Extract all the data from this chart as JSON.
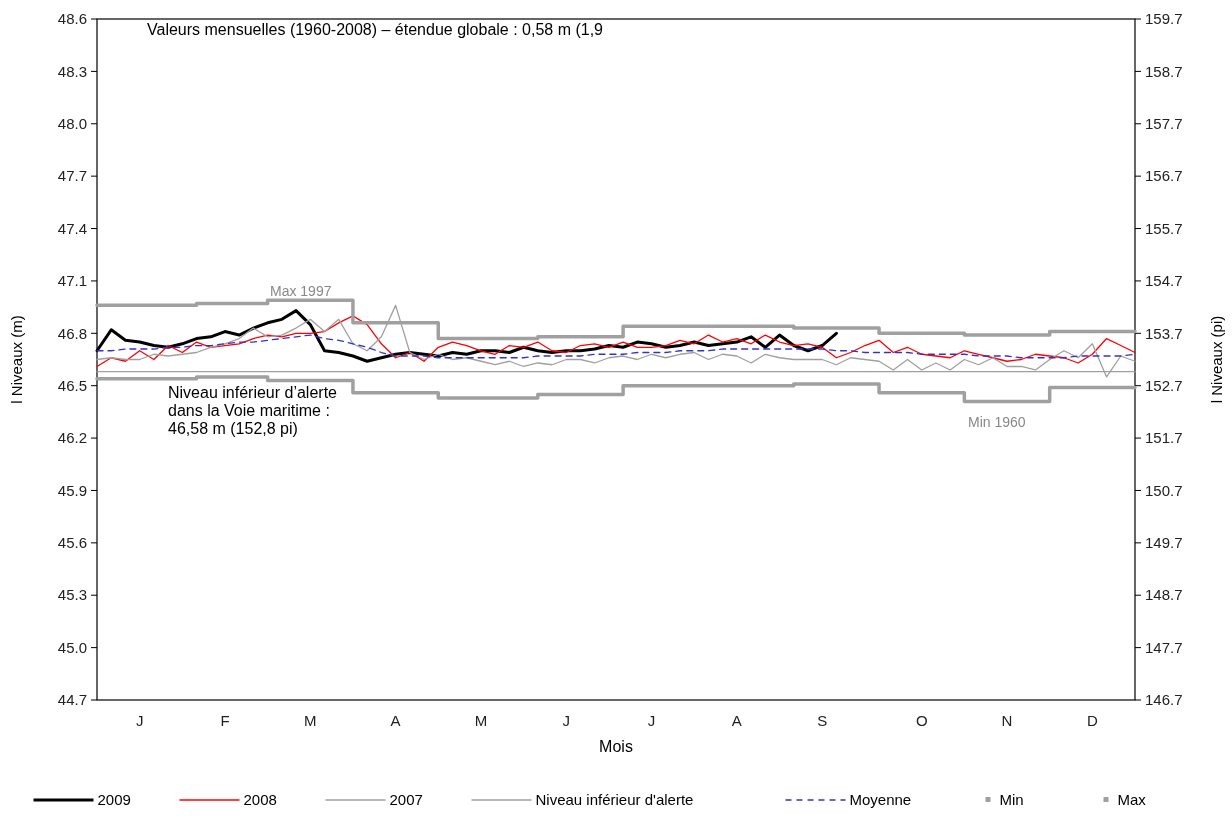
{
  "chart_data": {
    "type": "line",
    "title": "Valeurs mensuelles (1960-2008) – étendue globale : 0,58 m (1,9",
    "xlabel": "Mois",
    "ylabel": "l Niveaux (m)",
    "y2label": "l Niveaux (pi)",
    "categories": [
      null,
      null,
      null,
      "J",
      null,
      null,
      null,
      null,
      null,
      "F",
      null,
      null,
      null,
      null,
      null,
      "M",
      null,
      null,
      null,
      null,
      null,
      "A",
      null,
      null,
      null,
      null,
      null,
      "M",
      null,
      null,
      null,
      null,
      null,
      "J",
      null,
      null,
      null,
      null,
      null,
      "J",
      null,
      null,
      null,
      null,
      null,
      "A",
      null,
      null,
      null,
      null,
      null,
      "S",
      null,
      null,
      null,
      null,
      null,
      null,
      "O",
      null,
      null,
      null,
      null,
      null,
      "N",
      null,
      null,
      null,
      null,
      null,
      "D",
      null,
      null,
      null
    ],
    "ylim": [
      44.7,
      48.6
    ],
    "yticks": [
      44.7,
      {
        "value": 45,
        "label": "45.0"
      },
      45.3,
      45.6,
      45.9,
      46.2,
      46.5,
      46.8,
      47.1,
      47.4,
      47.7,
      {
        "value": 48,
        "label": "48.0"
      },
      48.3,
      48.6
    ],
    "y2lim": [
      146.7,
      159.7
    ],
    "y2ticks": [
      146.7,
      147.7,
      148.7,
      149.7,
      150.7,
      151.7,
      152.7,
      153.7,
      154.7,
      155.7,
      156.7,
      157.7,
      158.7,
      159.7
    ],
    "grid": false,
    "legend": "bottom",
    "series": [
      {
        "name": "2009",
        "color": "#000000",
        "values": [
          46.7,
          46.82,
          46.76,
          46.75,
          46.73,
          46.72,
          46.74,
          46.77,
          46.78,
          46.81,
          46.79,
          46.83,
          46.86,
          46.88,
          46.93,
          46.85,
          46.7,
          46.69,
          46.67,
          46.64,
          46.66,
          46.68,
          46.69,
          46.68,
          46.67,
          46.69,
          46.68,
          46.7,
          46.7,
          46.69,
          46.72,
          46.7,
          46.69,
          46.7,
          46.7,
          46.71,
          46.73,
          46.72,
          46.75,
          46.74,
          46.72,
          46.73,
          46.75,
          46.73,
          46.74,
          46.75,
          46.78,
          46.72,
          46.79,
          46.73,
          46.7,
          46.73,
          46.8,
          null,
          null,
          null,
          null,
          null,
          null,
          null,
          null,
          null,
          null,
          null,
          null,
          null,
          null,
          null,
          null,
          null,
          null,
          null,
          null,
          null
        ]
      },
      {
        "name": "2008",
        "color": "#ff0000",
        "values": [
          46.61,
          46.66,
          46.64,
          46.7,
          46.65,
          46.73,
          46.69,
          46.75,
          46.72,
          46.73,
          46.74,
          46.77,
          46.79,
          46.78,
          46.8,
          46.8,
          46.81,
          46.86,
          46.9,
          46.85,
          46.74,
          46.66,
          46.69,
          46.64,
          46.72,
          46.75,
          46.73,
          46.7,
          46.68,
          46.73,
          46.72,
          46.75,
          46.7,
          46.69,
          46.73,
          46.74,
          46.72,
          46.75,
          46.72,
          46.72,
          46.73,
          46.76,
          46.74,
          46.79,
          46.75,
          46.77,
          46.74,
          46.79,
          46.75,
          46.73,
          46.74,
          46.72,
          46.66,
          46.69,
          46.73,
          46.76,
          46.69,
          46.72,
          46.68,
          46.67,
          46.66,
          46.7,
          46.68,
          46.66,
          46.64,
          46.65,
          46.68,
          46.67,
          46.66,
          46.63,
          46.68,
          46.77,
          46.73,
          46.69
        ]
      },
      {
        "name": "2007",
        "color": "#a0a0a0",
        "values": [
          46.65,
          46.66,
          46.65,
          46.65,
          46.68,
          46.67,
          46.68,
          46.69,
          46.72,
          46.74,
          46.77,
          46.83,
          46.78,
          46.79,
          46.83,
          46.88,
          46.81,
          46.88,
          46.74,
          46.7,
          46.78,
          46.96,
          46.69,
          46.65,
          46.68,
          46.65,
          46.66,
          46.64,
          46.62,
          46.64,
          46.61,
          46.63,
          46.62,
          46.65,
          46.65,
          46.63,
          46.66,
          46.67,
          46.65,
          46.68,
          46.66,
          46.68,
          46.69,
          46.65,
          46.68,
          46.67,
          46.63,
          46.68,
          46.66,
          46.65,
          46.65,
          46.65,
          46.62,
          46.66,
          46.65,
          46.64,
          46.59,
          46.65,
          46.59,
          46.63,
          46.59,
          46.65,
          46.62,
          46.66,
          46.61,
          46.61,
          46.59,
          46.65,
          46.7,
          46.66,
          46.74,
          46.55,
          46.67,
          46.64
        ]
      },
      {
        "name": "Niveau inférieur d'alerte",
        "color": "#a0a0a0",
        "values": [
          46.58,
          46.58,
          46.58,
          46.58,
          46.58,
          46.58,
          46.58,
          46.58,
          46.58,
          46.58,
          46.58,
          46.58,
          46.58,
          46.58,
          46.58,
          46.58,
          46.58,
          46.58,
          46.58,
          46.58,
          46.58,
          46.58,
          46.58,
          46.58,
          46.58,
          46.58,
          46.58,
          46.58,
          46.58,
          46.58,
          46.58,
          46.58,
          46.58,
          46.58,
          46.58,
          46.58,
          46.58,
          46.58,
          46.58,
          46.58,
          46.58,
          46.58,
          46.58,
          46.58,
          46.58,
          46.58,
          46.58,
          46.58,
          46.58,
          46.58,
          46.58,
          46.58,
          46.58,
          46.58,
          46.58,
          46.58,
          46.58,
          46.58,
          46.58,
          46.58,
          46.58,
          46.58,
          46.58,
          46.58,
          46.58,
          46.58,
          46.58,
          46.58,
          46.58,
          46.58,
          46.58,
          46.58,
          46.58,
          46.58
        ]
      },
      {
        "name": "Moyenne",
        "color": "#3333cc",
        "line_style": "dashed",
        "values": [
          46.7,
          46.7,
          46.71,
          46.71,
          46.71,
          46.72,
          46.72,
          46.73,
          46.73,
          46.74,
          46.75,
          46.75,
          46.76,
          46.77,
          46.78,
          46.79,
          46.77,
          46.76,
          46.74,
          46.72,
          46.69,
          46.67,
          46.67,
          46.67,
          46.66,
          46.66,
          46.66,
          46.66,
          46.66,
          46.66,
          46.66,
          46.67,
          46.67,
          46.67,
          46.67,
          46.68,
          46.68,
          46.68,
          46.69,
          46.69,
          46.69,
          46.7,
          46.7,
          46.7,
          46.71,
          46.71,
          46.71,
          46.71,
          46.71,
          46.71,
          46.71,
          46.71,
          46.7,
          46.7,
          46.69,
          46.69,
          46.69,
          46.69,
          46.68,
          46.68,
          46.68,
          46.68,
          46.67,
          46.67,
          46.67,
          46.66,
          46.66,
          46.66,
          46.66,
          46.67,
          46.67,
          46.67,
          46.67,
          46.68
        ]
      },
      {
        "name": "Min",
        "color": "#a0a0a0",
        "type": "step",
        "values": [
          46.54,
          46.54,
          46.54,
          46.54,
          46.54,
          46.54,
          46.54,
          46.55,
          46.55,
          46.55,
          46.55,
          46.55,
          46.53,
          46.53,
          46.53,
          46.53,
          46.53,
          46.53,
          46.46,
          46.46,
          46.46,
          46.46,
          46.46,
          46.46,
          46.43,
          46.43,
          46.43,
          46.43,
          46.43,
          46.43,
          46.43,
          46.45,
          46.45,
          46.45,
          46.45,
          46.45,
          46.45,
          46.5,
          46.5,
          46.5,
          46.5,
          46.5,
          46.5,
          46.5,
          46.5,
          46.5,
          46.5,
          46.5,
          46.5,
          46.51,
          46.51,
          46.51,
          46.51,
          46.51,
          46.51,
          46.46,
          46.46,
          46.46,
          46.46,
          46.46,
          46.46,
          46.41,
          46.41,
          46.41,
          46.41,
          46.41,
          46.41,
          46.49,
          46.49,
          46.49,
          46.49,
          46.49,
          46.49,
          46.49
        ]
      },
      {
        "name": "Max",
        "color": "#a0a0a0",
        "type": "step",
        "values": [
          46.96,
          46.96,
          46.96,
          46.96,
          46.96,
          46.96,
          46.96,
          46.97,
          46.97,
          46.97,
          46.97,
          46.97,
          46.99,
          46.99,
          46.99,
          46.99,
          46.99,
          46.99,
          46.86,
          46.86,
          46.86,
          46.86,
          46.86,
          46.86,
          46.77,
          46.77,
          46.77,
          46.77,
          46.77,
          46.77,
          46.77,
          46.78,
          46.78,
          46.78,
          46.78,
          46.78,
          46.78,
          46.84,
          46.84,
          46.84,
          46.84,
          46.84,
          46.84,
          46.84,
          46.84,
          46.84,
          46.84,
          46.84,
          46.84,
          46.83,
          46.83,
          46.83,
          46.83,
          46.83,
          46.83,
          46.8,
          46.8,
          46.8,
          46.8,
          46.8,
          46.8,
          46.79,
          46.79,
          46.79,
          46.79,
          46.79,
          46.79,
          46.81,
          46.81,
          46.81,
          46.81,
          46.81,
          46.81,
          46.81
        ]
      }
    ],
    "annotations": [
      "Max 1997",
      "Min 1960",
      "Niveau inférieur d’alerte dans la Voie maritime : 46,58 m (152,8 pi)"
    ]
  }
}
